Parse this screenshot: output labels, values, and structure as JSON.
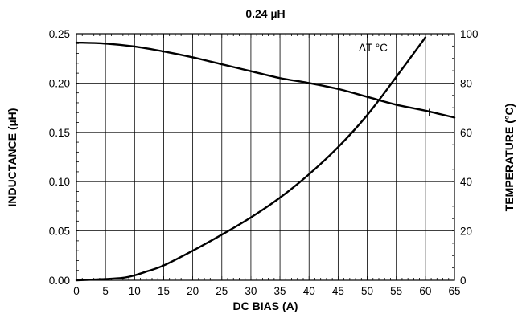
{
  "chart_data": {
    "type": "line",
    "title": "0.24 µH",
    "xlabel": "DC BIAS (A)",
    "ylabel": "INDUCTANCE (µH)",
    "y2label": "TEMPERATURE (°C)",
    "xlim": [
      0,
      65
    ],
    "ylim": [
      0,
      0.25
    ],
    "y2lim": [
      0,
      100
    ],
    "grid": true,
    "x_ticks": [
      "0",
      "5",
      "10",
      "15",
      "20",
      "25",
      "30",
      "35",
      "40",
      "45",
      "50",
      "55",
      "60",
      "65"
    ],
    "x_tick_values": [
      0,
      5,
      10,
      15,
      20,
      25,
      30,
      35,
      40,
      45,
      50,
      55,
      60,
      65
    ],
    "y_ticks": [
      "0.00",
      "0.05",
      "0.10",
      "0.15",
      "0.20",
      "0.25"
    ],
    "y_tick_values": [
      0,
      0.05,
      0.1,
      0.15,
      0.2,
      0.25
    ],
    "y2_ticks": [
      "0",
      "20",
      "40",
      "60",
      "80",
      "100"
    ],
    "y2_tick_values": [
      0,
      20,
      40,
      60,
      80,
      100
    ],
    "series": [
      {
        "name": "L",
        "axis": "left",
        "x": [
          0,
          5,
          10,
          15,
          20,
          25,
          30,
          35,
          40,
          45,
          50,
          55,
          60,
          65
        ],
        "values": [
          0.241,
          0.24,
          0.237,
          0.232,
          0.226,
          0.219,
          0.212,
          0.205,
          0.2,
          0.194,
          0.186,
          0.178,
          0.172,
          0.165
        ]
      },
      {
        "name": "ΔT °C",
        "axis": "right",
        "x": [
          0,
          5,
          8,
          10,
          12,
          15,
          20,
          25,
          30,
          35,
          40,
          45,
          50,
          55,
          60
        ],
        "values": [
          0,
          0.5,
          1,
          2,
          3.5,
          6,
          12,
          18.5,
          25.5,
          33.5,
          43,
          54,
          67,
          82.5,
          98.5
        ]
      }
    ]
  }
}
